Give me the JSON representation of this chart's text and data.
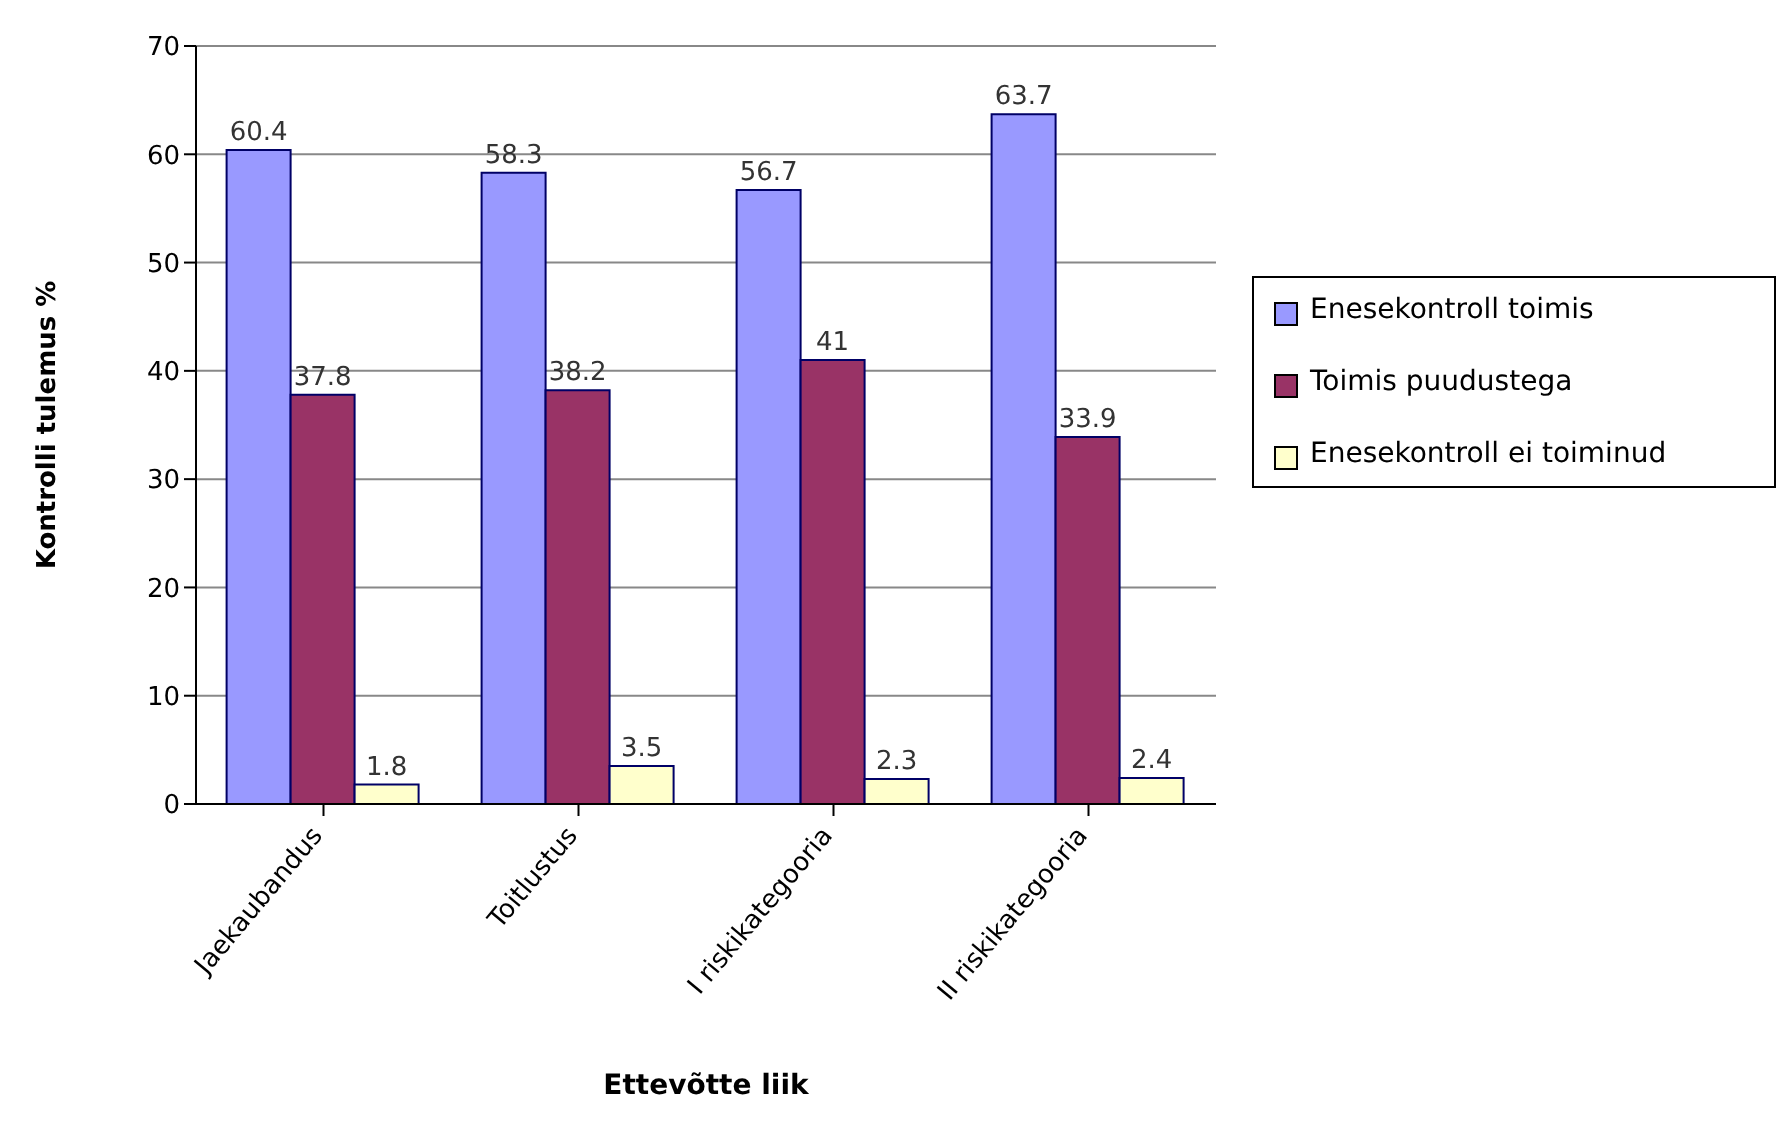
{
  "chart_data": {
    "type": "bar",
    "xlabel": "Ettevõtte liik",
    "ylabel": "Kontrolli tulemus %",
    "categories": [
      "Jaekaubandus",
      "Toitlustus",
      "I riskikategooria",
      "II riskikategooria"
    ],
    "series": [
      {
        "name": "Enesekontroll toimis",
        "color": "#9999ff",
        "values": [
          60.4,
          58.3,
          56.7,
          63.7
        ]
      },
      {
        "name": "Toimis puudustega",
        "color": "#993366",
        "values": [
          37.8,
          38.2,
          41,
          33.9
        ]
      },
      {
        "name": "Enesekontroll ei toiminud",
        "color": "#ffffcc",
        "values": [
          1.8,
          3.5,
          2.3,
          2.4
        ]
      }
    ],
    "ylim": [
      0,
      70
    ],
    "yticks": [
      0,
      10,
      20,
      30,
      40,
      50,
      60,
      70
    ],
    "grid": "y",
    "legend": "right",
    "data_labels": true
  }
}
